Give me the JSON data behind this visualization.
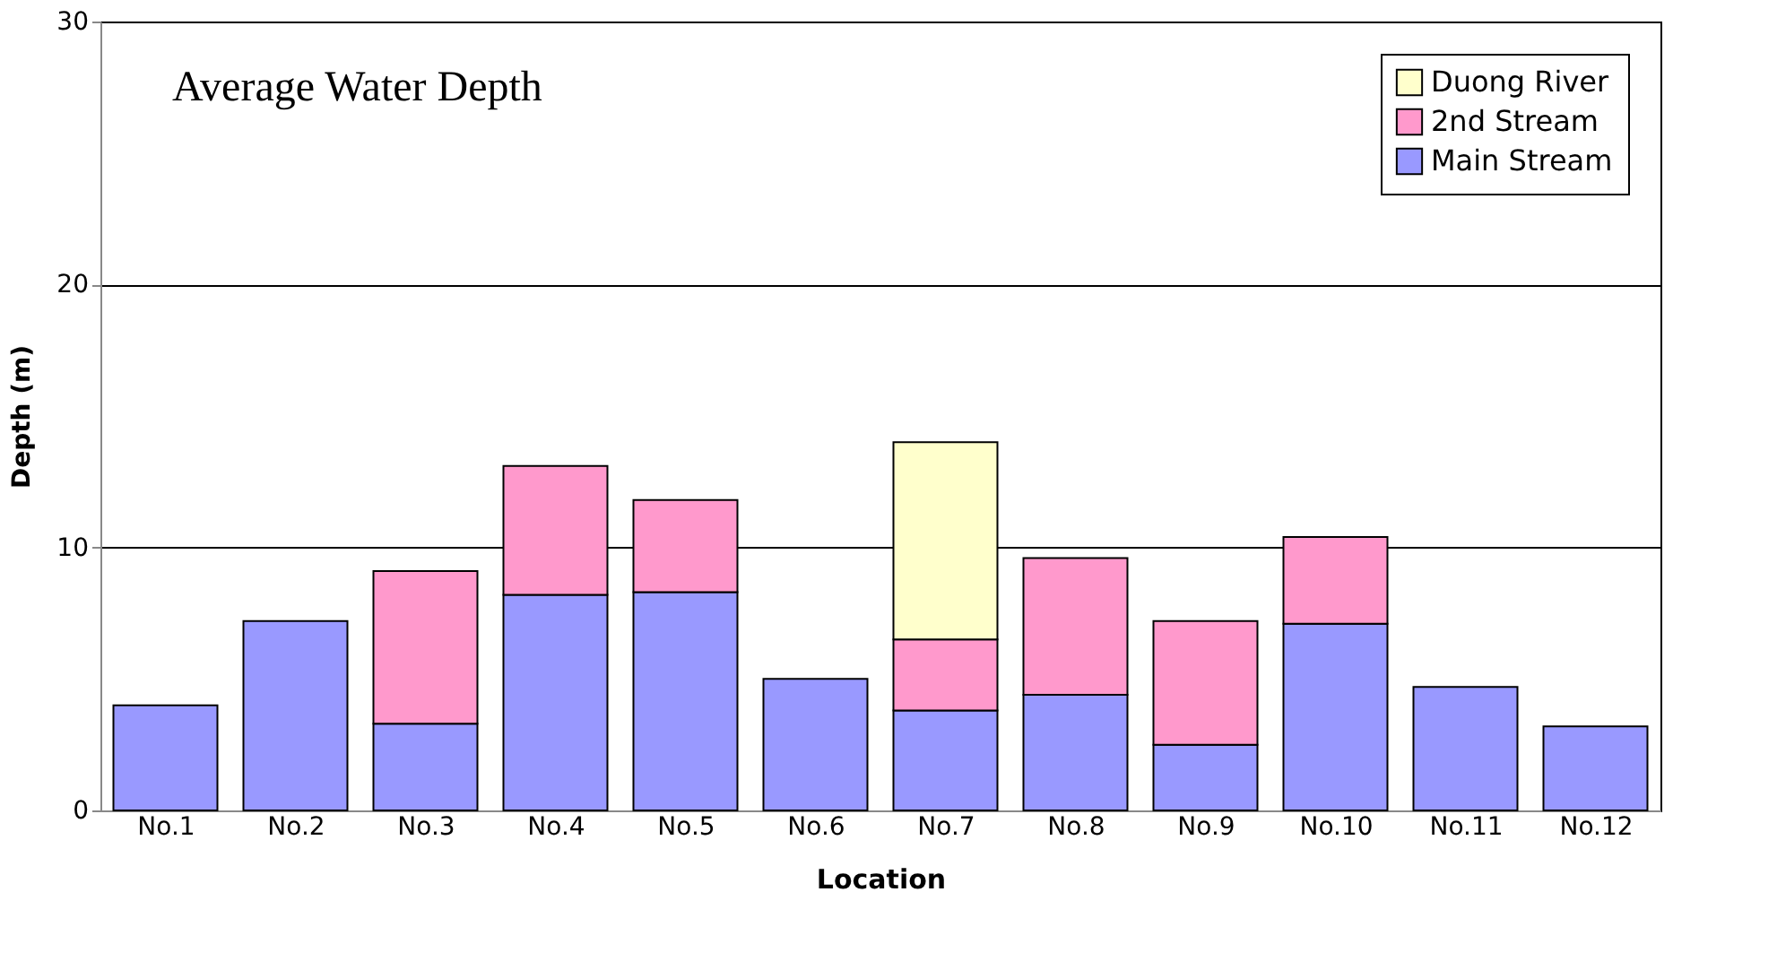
{
  "chart_data": {
    "type": "bar",
    "title": "Average Water Depth",
    "xlabel": "Location",
    "ylabel": "Depth (m)",
    "categories": [
      "No.1",
      "No.2",
      "No.3",
      "No.4",
      "No.5",
      "No.6",
      "No.7",
      "No.8",
      "No.9",
      "No.10",
      "No.11",
      "No.12"
    ],
    "stacked": true,
    "series": [
      {
        "name": "Main Stream",
        "color": "#9999ff",
        "values": [
          4.0,
          7.2,
          3.3,
          8.2,
          8.3,
          5.0,
          3.8,
          4.4,
          2.5,
          7.1,
          4.7,
          3.2
        ]
      },
      {
        "name": "2nd Stream",
        "color": "#ff99cc",
        "values": [
          null,
          null,
          5.8,
          4.9,
          3.5,
          null,
          2.7,
          5.2,
          4.7,
          3.3,
          null,
          null
        ]
      },
      {
        "name": "Duong River",
        "color": "#ffffcc",
        "values": [
          null,
          null,
          null,
          null,
          null,
          null,
          7.5,
          null,
          null,
          null,
          null,
          null
        ]
      }
    ],
    "ylim": [
      0,
      30
    ],
    "yticks": [
      0,
      10,
      20,
      30
    ],
    "grid": "y",
    "legend": "top right"
  }
}
